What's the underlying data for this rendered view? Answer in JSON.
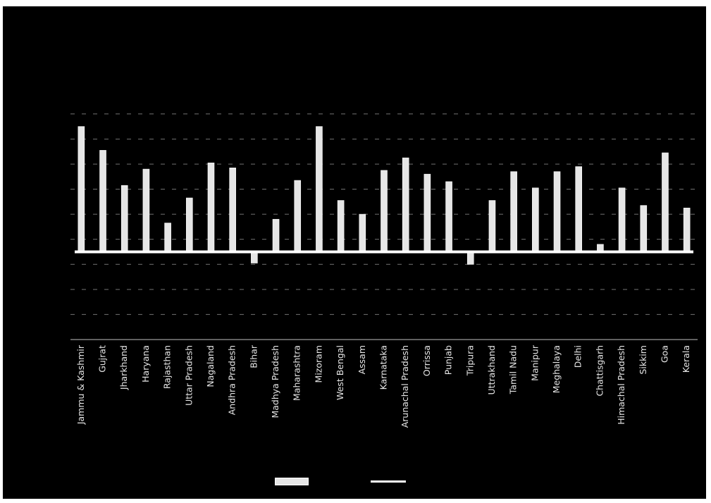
{
  "chart_data": {
    "type": "bar",
    "title": "",
    "xlabel": "",
    "ylabel": "",
    "categories": [
      "Jammu & Kashmir",
      "Gujrat",
      "Jharkhand",
      "Haryana",
      "Rajasthan",
      "Uttar Pradesh",
      "Nagaland",
      "Andhra Pradesh",
      "Bihar",
      "Madhya Pradesh",
      "Maharashtra",
      "Mizoram",
      "West Bengal",
      "Assam",
      "Karnataka",
      "Arunachal Pradesh",
      "Orrissa",
      "Punjab",
      "Tripura",
      "Uttrakhand",
      "Tamil Nadu",
      "Manipur",
      "Meghalaya",
      "Delhi",
      "Chattisgarh",
      "Himachal Pradesh",
      "Sikkim",
      "Goa",
      "Kerala"
    ],
    "series": [
      {
        "values": [
          100,
          81,
          53,
          66,
          23,
          43,
          71,
          67,
          -9,
          26,
          57,
          100,
          41,
          30,
          65,
          75,
          62,
          56,
          -10,
          41,
          64,
          51,
          64,
          68,
          6,
          51,
          37,
          79,
          35
        ],
        "color": "#e6e6e6"
      },
      {
        "values": [
          0,
          0,
          0,
          0,
          0,
          0,
          0,
          0,
          0,
          0,
          0,
          0,
          0,
          0,
          0,
          0,
          0,
          0,
          0,
          0,
          0,
          0,
          0,
          0,
          0,
          0,
          0,
          0,
          0
        ],
        "type": "line",
        "color": "#ffffff"
      }
    ],
    "ylim": [
      -70,
      120
    ],
    "grid": true,
    "legend": "bottom",
    "colors": {
      "background": "#000000",
      "bar": "#e6e6e6",
      "line": "#ffffff",
      "grid": "#bfbfbf",
      "text": "#e6e6e6"
    }
  }
}
